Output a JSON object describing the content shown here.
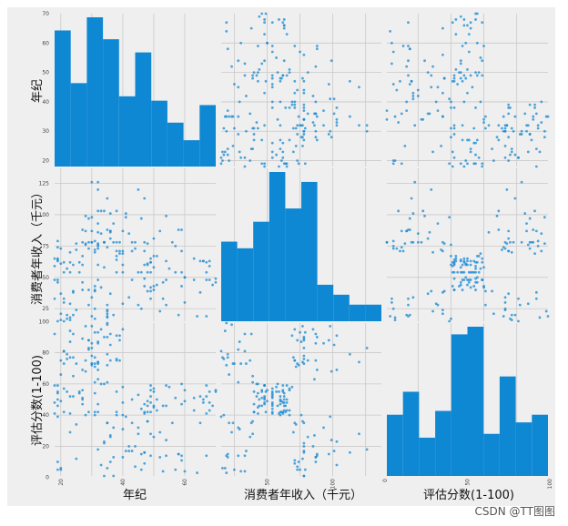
{
  "watermark": "CSDN @TT图图",
  "chart_data": {
    "type": "scatter-matrix",
    "variables": [
      "年纪",
      "消费者年收入（千元）",
      "评估分数(1-100)"
    ],
    "colors": {
      "marker": "#1a8ad1",
      "hist": "#0f88d4",
      "background": "#efefef",
      "grid": "#c9c9c9"
    },
    "ranges": [
      [
        18,
        70
      ],
      [
        15,
        137
      ],
      [
        1,
        99
      ]
    ],
    "ticks": [
      {
        "values": [
          20,
          30,
          40,
          50,
          60,
          70
        ],
        "labels": [
          "20",
          "30",
          "40",
          "50",
          "60",
          "70"
        ]
      },
      {
        "values": [
          25,
          50,
          75,
          100,
          125
        ],
        "labels": [
          "25",
          "50",
          "75",
          "100",
          "125"
        ]
      },
      {
        "values": [
          0,
          20,
          40,
          60,
          80,
          100
        ],
        "labels": [
          "0",
          "20",
          "40",
          "60",
          "80",
          "100"
        ]
      }
    ],
    "bottom_ticks": [
      {
        "values": [
          20,
          40,
          60
        ],
        "labels": [
          "20",
          "40",
          "60"
        ]
      },
      {
        "values": [
          50,
          100
        ],
        "labels": [
          "50",
          "100"
        ]
      },
      {
        "values": [
          0,
          50,
          100
        ],
        "labels": [
          "0",
          "50",
          "100"
        ]
      }
    ],
    "histograms": [
      {
        "bins": [
          18,
          23.2,
          28.4,
          33.6,
          38.8,
          44,
          49.2,
          54.4,
          59.6,
          64.8,
          70
        ],
        "counts": [
          31,
          19,
          34,
          29,
          16,
          26,
          15,
          10,
          6,
          14
        ]
      },
      {
        "bins": [
          15,
          27.2,
          39.4,
          51.6,
          63.8,
          76,
          88.2,
          100.4,
          112.6,
          124.8,
          137
        ],
        "counts": [
          24,
          22,
          30,
          45,
          34,
          42,
          11,
          8,
          5,
          5
        ]
      },
      {
        "bins": [
          1,
          10.8,
          20.6,
          30.4,
          40.2,
          50,
          59.8,
          69.6,
          79.4,
          89.2,
          99
        ],
        "counts": [
          16,
          22,
          10,
          17,
          37,
          39,
          11,
          26,
          14,
          16
        ]
      }
    ],
    "points": {
      "age": [
        19,
        21,
        20,
        23,
        31,
        22,
        35,
        23,
        64,
        30,
        67,
        35,
        58,
        24,
        37,
        22,
        35,
        20,
        52,
        35,
        35,
        25,
        46,
        31,
        54,
        29,
        45,
        35,
        40,
        23,
        60,
        21,
        53,
        18,
        49,
        21,
        42,
        30,
        36,
        20,
        65,
        24,
        48,
        31,
        49,
        24,
        50,
        27,
        29,
        31,
        49,
        33,
        31,
        59,
        50,
        47,
        51,
        69,
        27,
        53,
        70,
        19,
        67,
        54,
        63,
        18,
        43,
        68,
        19,
        32,
        70,
        47,
        60,
        60,
        59,
        26,
        45,
        40,
        23,
        49,
        57,
        38,
        67,
        46,
        21,
        48,
        55,
        22,
        34,
        50,
        68,
        18,
        48,
        40,
        32,
        24,
        47,
        27,
        48,
        20,
        23,
        49,
        67,
        26,
        49,
        21,
        66,
        54,
        68,
        66,
        65,
        19,
        38,
        19,
        18,
        19,
        63,
        49,
        51,
        50,
        27,
        38,
        40,
        39,
        23,
        31,
        43,
        40,
        59,
        38,
        47,
        39,
        25,
        31,
        20,
        29,
        44,
        32,
        19,
        35,
        57,
        32,
        28,
        32,
        25,
        28,
        48,
        32,
        34,
        34,
        43,
        39,
        44,
        38,
        47,
        27,
        37,
        30,
        34,
        30,
        56,
        29,
        19,
        31,
        50,
        36,
        42,
        33,
        36,
        32,
        40,
        28,
        36,
        36,
        52,
        30,
        58,
        27,
        59,
        35,
        37,
        32,
        46,
        29,
        41,
        30,
        54,
        28,
        41,
        36,
        34,
        32,
        33,
        38,
        47,
        35,
        45,
        32,
        32,
        30
      ],
      "income": [
        15,
        15,
        16,
        16,
        17,
        17,
        18,
        18,
        19,
        19,
        19,
        19,
        20,
        20,
        20,
        20,
        21,
        21,
        23,
        23,
        24,
        24,
        25,
        25,
        28,
        28,
        28,
        28,
        29,
        29,
        30,
        30,
        33,
        33,
        33,
        33,
        34,
        34,
        37,
        37,
        38,
        38,
        39,
        39,
        39,
        39,
        40,
        40,
        40,
        40,
        42,
        42,
        43,
        43,
        43,
        43,
        44,
        44,
        46,
        46,
        46,
        46,
        48,
        48,
        48,
        48,
        48,
        48,
        48,
        48,
        49,
        49,
        50,
        50,
        54,
        54,
        54,
        54,
        54,
        54,
        54,
        54,
        54,
        54,
        54,
        54,
        57,
        57,
        58,
        58,
        59,
        59,
        60,
        60,
        60,
        60,
        60,
        60,
        61,
        61,
        62,
        62,
        62,
        62,
        62,
        62,
        63,
        63,
        63,
        63,
        63,
        63,
        64,
        64,
        65,
        65,
        65,
        65,
        67,
        67,
        67,
        67,
        69,
        69,
        70,
        70,
        71,
        71,
        71,
        71,
        71,
        71,
        72,
        72,
        73,
        73,
        73,
        73,
        74,
        74,
        75,
        75,
        76,
        76,
        77,
        77,
        77,
        77,
        78,
        78,
        78,
        78,
        78,
        78,
        78,
        78,
        78,
        78,
        78,
        78,
        78,
        78,
        79,
        79,
        81,
        81,
        85,
        85,
        86,
        86,
        87,
        87,
        87,
        87,
        87,
        87,
        88,
        88,
        88,
        88,
        93,
        93,
        97,
        97,
        98,
        98,
        99,
        99,
        101,
        101,
        103,
        103,
        103,
        103,
        113,
        113,
        120,
        120,
        126,
        126
      ],
      "score": [
        39,
        81,
        6,
        77,
        40,
        76,
        6,
        94,
        3,
        72,
        14,
        99,
        15,
        77,
        13,
        79,
        35,
        66,
        29,
        98,
        35,
        73,
        5,
        73,
        14,
        82,
        32,
        61,
        31,
        87,
        4,
        73,
        4,
        92,
        14,
        81,
        17,
        73,
        26,
        75,
        35,
        92,
        36,
        61,
        28,
        65,
        55,
        47,
        42,
        42,
        52,
        60,
        54,
        60,
        45,
        41,
        50,
        46,
        51,
        46,
        56,
        55,
        52,
        59,
        51,
        59,
        50,
        48,
        59,
        47,
        55,
        42,
        49,
        56,
        47,
        54,
        53,
        48,
        52,
        42,
        51,
        55,
        41,
        44,
        57,
        46,
        58,
        55,
        60,
        46,
        55,
        41,
        49,
        40,
        42,
        52,
        47,
        50,
        42,
        49,
        41,
        48,
        59,
        55,
        56,
        42,
        50,
        46,
        43,
        48,
        52,
        54,
        42,
        46,
        48,
        50,
        43,
        59,
        43,
        57,
        56,
        40,
        58,
        91,
        29,
        77,
        35,
        95,
        11,
        75,
        9,
        75,
        34,
        71,
        5,
        88,
        7,
        73,
        10,
        72,
        5,
        93,
        40,
        87,
        12,
        97,
        36,
        74,
        22,
        90,
        17,
        88,
        20,
        76,
        16,
        89,
        1,
        78,
        1,
        73,
        35,
        83,
        5,
        93,
        26,
        75,
        20,
        95,
        27,
        63,
        13,
        75,
        10,
        92,
        13,
        86,
        15,
        69,
        14,
        90,
        32,
        86,
        15,
        88,
        39,
        97,
        24,
        68,
        17,
        85,
        23,
        69,
        8,
        91,
        16,
        79,
        28,
        74,
        18,
        83
      ]
    }
  }
}
